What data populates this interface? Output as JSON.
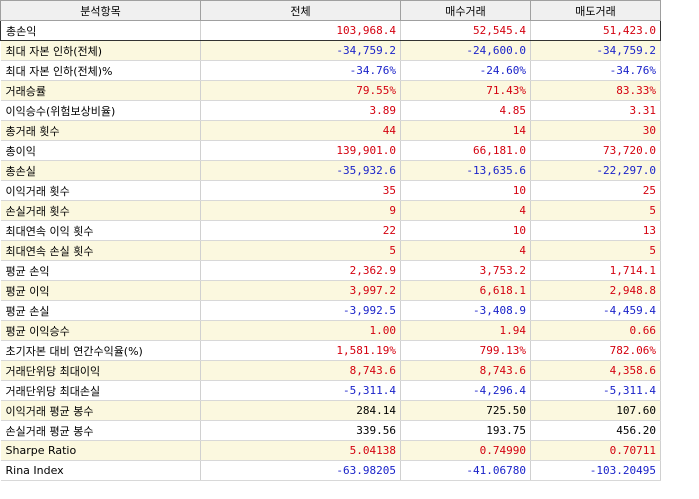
{
  "header": {
    "item": "분석항목",
    "total": "전체",
    "buy": "매수거래",
    "sell": "매도거래"
  },
  "colors": {
    "positive": "#d4000f",
    "negative": "#1a22c9",
    "neutral": "#000000"
  },
  "rows": [
    {
      "label": "총손익",
      "total": "103,968.4",
      "buy": "52,545.4",
      "sell": "51,423.0",
      "tone": [
        "pos",
        "pos",
        "pos"
      ]
    },
    {
      "label": "최대 자본 인하(전체)",
      "total": "-34,759.2",
      "buy": "-24,600.0",
      "sell": "-34,759.2",
      "tone": [
        "neg",
        "neg",
        "neg"
      ]
    },
    {
      "label": "최대 자본 인하(전체)%",
      "total": "-34.76%",
      "buy": "-24.60%",
      "sell": "-34.76%",
      "tone": [
        "neg",
        "neg",
        "neg"
      ]
    },
    {
      "label": "거래승률",
      "total": "79.55%",
      "buy": "71.43%",
      "sell": "83.33%",
      "tone": [
        "pos",
        "pos",
        "pos"
      ]
    },
    {
      "label": "이익승수(위험보상비율)",
      "total": "3.89",
      "buy": "4.85",
      "sell": "3.31",
      "tone": [
        "pos",
        "pos",
        "pos"
      ]
    },
    {
      "label": "총거래 횟수",
      "total": "44",
      "buy": "14",
      "sell": "30",
      "tone": [
        "pos",
        "pos",
        "pos"
      ]
    },
    {
      "label": "총이익",
      "total": "139,901.0",
      "buy": "66,181.0",
      "sell": "73,720.0",
      "tone": [
        "pos",
        "pos",
        "pos"
      ]
    },
    {
      "label": "총손실",
      "total": "-35,932.6",
      "buy": "-13,635.6",
      "sell": "-22,297.0",
      "tone": [
        "neg",
        "neg",
        "neg"
      ]
    },
    {
      "label": "이익거래 횟수",
      "total": "35",
      "buy": "10",
      "sell": "25",
      "tone": [
        "pos",
        "pos",
        "pos"
      ]
    },
    {
      "label": "손실거래 횟수",
      "total": "9",
      "buy": "4",
      "sell": "5",
      "tone": [
        "pos",
        "pos",
        "pos"
      ]
    },
    {
      "label": "최대연속 이익 횟수",
      "total": "22",
      "buy": "10",
      "sell": "13",
      "tone": [
        "pos",
        "pos",
        "pos"
      ]
    },
    {
      "label": "최대연속 손실 횟수",
      "total": "5",
      "buy": "4",
      "sell": "5",
      "tone": [
        "pos",
        "pos",
        "pos"
      ]
    },
    {
      "label": "평균 손익",
      "total": "2,362.9",
      "buy": "3,753.2",
      "sell": "1,714.1",
      "tone": [
        "pos",
        "pos",
        "pos"
      ]
    },
    {
      "label": "평균 이익",
      "total": "3,997.2",
      "buy": "6,618.1",
      "sell": "2,948.8",
      "tone": [
        "pos",
        "pos",
        "pos"
      ]
    },
    {
      "label": "평균 손실",
      "total": "-3,992.5",
      "buy": "-3,408.9",
      "sell": "-4,459.4",
      "tone": [
        "neg",
        "neg",
        "neg"
      ]
    },
    {
      "label": "평균 이익승수",
      "total": "1.00",
      "buy": "1.94",
      "sell": "0.66",
      "tone": [
        "pos",
        "pos",
        "pos"
      ]
    },
    {
      "label": "초기자본 대비 연간수익율(%)",
      "total": "1,581.19%",
      "buy": "799.13%",
      "sell": "782.06%",
      "tone": [
        "pos",
        "pos",
        "pos"
      ]
    },
    {
      "label": "거래단위당 최대이익",
      "total": "8,743.6",
      "buy": "8,743.6",
      "sell": "4,358.6",
      "tone": [
        "pos",
        "pos",
        "pos"
      ]
    },
    {
      "label": "거래단위당 최대손실",
      "total": "-5,311.4",
      "buy": "-4,296.4",
      "sell": "-5,311.4",
      "tone": [
        "neg",
        "neg",
        "neg"
      ]
    },
    {
      "label": "이익거래 평균 봉수",
      "total": "284.14",
      "buy": "725.50",
      "sell": "107.60",
      "tone": [
        "neu",
        "neu",
        "neu"
      ]
    },
    {
      "label": "손실거래 평균 봉수",
      "total": "339.56",
      "buy": "193.75",
      "sell": "456.20",
      "tone": [
        "neu",
        "neu",
        "neu"
      ]
    },
    {
      "label": "Sharpe Ratio",
      "total": "5.04138",
      "buy": "0.74990",
      "sell": "0.70711",
      "tone": [
        "pos",
        "pos",
        "pos"
      ]
    },
    {
      "label": "Rina Index",
      "total": "-63.98205",
      "buy": "-41.06780",
      "sell": "-103.20495",
      "tone": [
        "neg",
        "neg",
        "neg"
      ]
    }
  ]
}
